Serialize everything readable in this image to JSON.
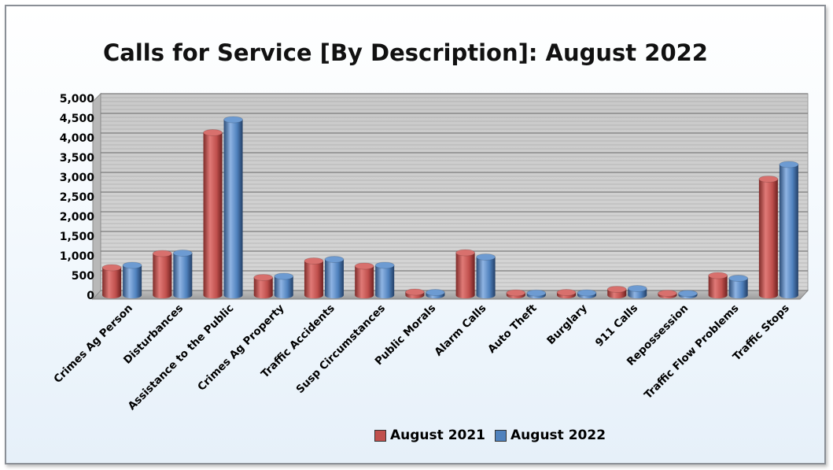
{
  "chart_data": {
    "type": "bar",
    "title": "Calls for Service [By Description]: August 2022",
    "categories": [
      "Crimes Ag Person",
      "Disturbances",
      "Assistance to the Public",
      "Crimes Ag Property",
      "Traffic Accidents",
      "Susp Circumstances",
      "Public Morals",
      "Alarm Calls",
      "Auto Theft",
      "Burglary",
      "911 Calls",
      "Repossession",
      "Traffic Flow Problems",
      "Traffic Stops"
    ],
    "series": [
      {
        "name": "August 2021",
        "color": "#c0504d",
        "values": [
          700,
          1060,
          4130,
          450,
          870,
          740,
          80,
          1080,
          60,
          70,
          150,
          50,
          500,
          2950
        ]
      },
      {
        "name": "August 2022",
        "color": "#4f81bd",
        "values": [
          760,
          1070,
          4460,
          480,
          910,
          760,
          70,
          970,
          55,
          60,
          170,
          45,
          430,
          3320
        ]
      }
    ],
    "yticks": [
      "0",
      "500",
      "1,000",
      "1,500",
      "2,000",
      "2,500",
      "3,000",
      "3,500",
      "4,000",
      "4,500",
      "5,000"
    ],
    "ylim": [
      0,
      5000
    ],
    "xlabel": "",
    "ylabel": "",
    "grid": true,
    "legend": "bottom"
  }
}
